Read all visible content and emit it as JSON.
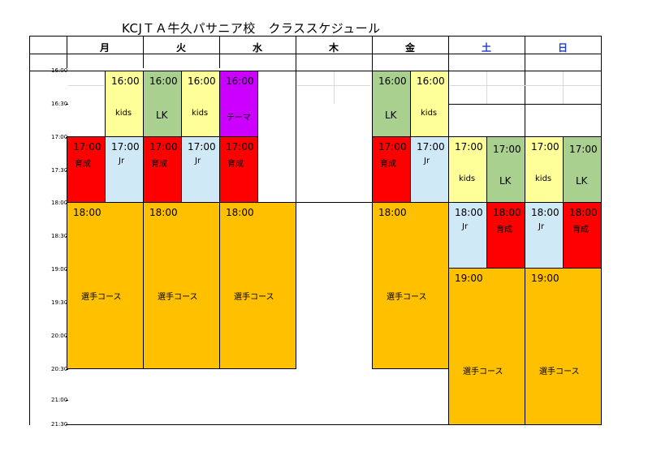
{
  "title": "KCJＴＡ牛久パサニア校　クラススケジュール",
  "days": [
    {
      "label": "月",
      "color": "#000000"
    },
    {
      "label": "火",
      "color": "#000000"
    },
    {
      "label": "水",
      "color": "#000000"
    },
    {
      "label": "木",
      "color": "#000000"
    },
    {
      "label": "金",
      "color": "#000000"
    },
    {
      "label": "土",
      "color": "#1f3ccc"
    },
    {
      "label": "日",
      "color": "#1f3ccc"
    }
  ],
  "times": [
    "16:00",
    "16:30",
    "17:00",
    "17:30",
    "18:00",
    "18:30",
    "19:00",
    "19:30",
    "20:00",
    "20:30",
    "21:00",
    "21:30"
  ],
  "colors": {
    "kids": "#ffff99",
    "lk": "#a9d08e",
    "theme": "#cc00ff",
    "ikusei": "#ff0000",
    "jr": "#cfe9f7",
    "course": "#ffc000"
  },
  "classes": {
    "mon": {
      "kids_time": "16:00",
      "kids_label": "kids",
      "ikusei_time": "17:00",
      "ikusei_label": "育成",
      "jr_time": "17:00",
      "jr_label": "Jr",
      "course_time": "18:00",
      "course_label": "選手コース"
    },
    "tue": {
      "lk_time": "16:00",
      "lk_label": "LK",
      "kids_time": "16:00",
      "kids_label": "kids",
      "ikusei_time": "17:00",
      "ikusei_label": "育成",
      "jr_time": "17:00",
      "jr_label": "Jr",
      "course_time": "18:00",
      "course_label": "選手コース"
    },
    "wed": {
      "theme_time": "16:00",
      "theme_label": "テーマ",
      "ikusei_time": "17:00",
      "ikusei_label": "育成",
      "course_time": "18:00",
      "course_label": "選手コース"
    },
    "fri": {
      "lk_time": "16:00",
      "lk_label": "LK",
      "kids_time": "16:00",
      "kids_label": "kids",
      "ikusei_time": "17:00",
      "ikusei_label": "育成",
      "jr_time": "17:00",
      "jr_label": "Jr",
      "course_time": "18:00",
      "course_label": "選手コース"
    },
    "sat": {
      "kids_time": "17:00",
      "kids_label": "kids",
      "lk_time": "17:00",
      "lk_label": "LK",
      "jr_time": "18:00",
      "jr_label": "Jr",
      "ikusei_time": "18:00",
      "ikusei_label": "育成",
      "course_time": "19:00",
      "course_label": "選手コース"
    },
    "sun": {
      "kids_time": "17:00",
      "kids_label": "kids",
      "lk_time": "17:00",
      "lk_label": "LK",
      "jr_time": "18:00",
      "jr_label": "Jr",
      "ikusei_time": "18:00",
      "ikusei_label": "育成",
      "course_time": "19:00",
      "course_label": "選手コース"
    }
  }
}
